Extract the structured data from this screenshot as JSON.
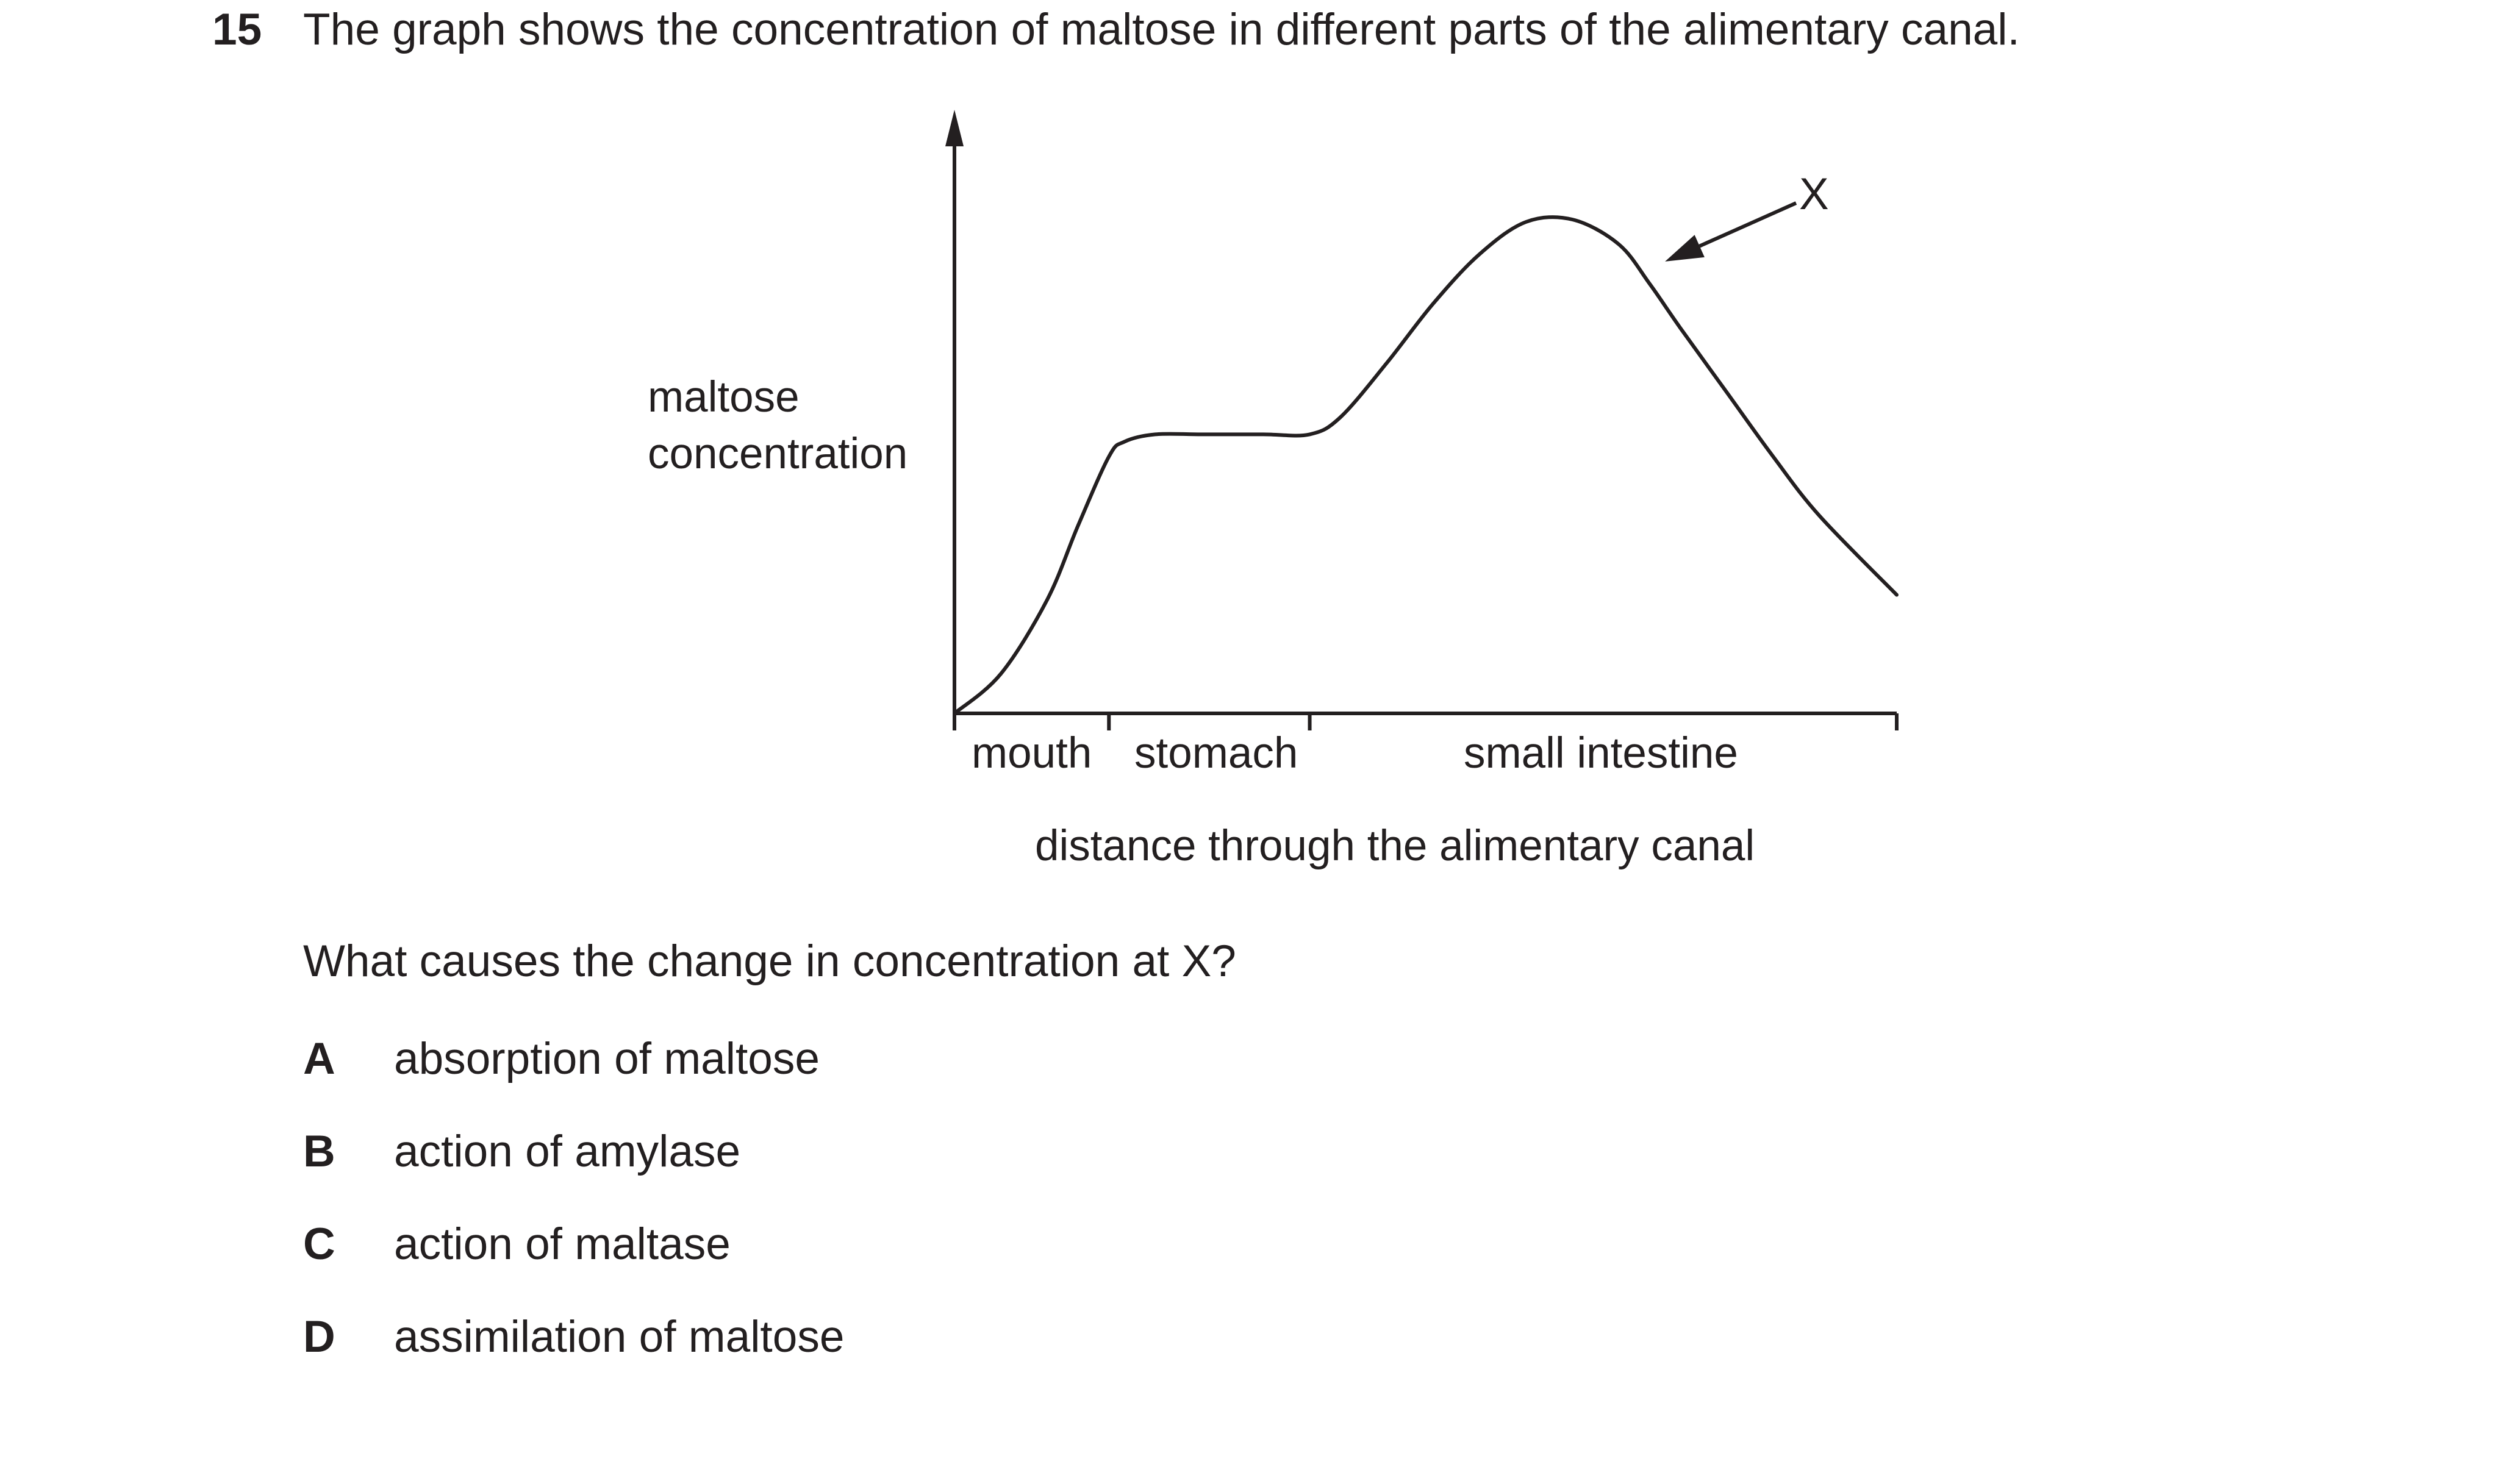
{
  "question": {
    "number": "15",
    "text": "The graph shows the concentration of maltose in different parts of the alimentary canal.",
    "prompt": "What causes the change in concentration at X?",
    "options": [
      {
        "letter": "A",
        "text": "absorption of maltose"
      },
      {
        "letter": "B",
        "text": "action of amylase"
      },
      {
        "letter": "C",
        "text": "action of maltase"
      },
      {
        "letter": "D",
        "text": "assimilation of maltose"
      }
    ]
  },
  "chart_data": {
    "type": "line",
    "title": "",
    "ylabel_lines": [
      "maltose",
      "concentration"
    ],
    "xlabel": "distance through the alimentary canal",
    "categories": [
      "mouth",
      "stomach",
      "small intestine"
    ],
    "section_boundaries": [
      0,
      1,
      2.3,
      6.1
    ],
    "xlim": [
      0,
      6.1
    ],
    "ylim": [
      0,
      1
    ],
    "grid": false,
    "x": [
      0,
      0.3,
      0.6,
      0.8,
      1.0,
      1.1,
      1.3,
      1.6,
      2.0,
      2.3,
      2.5,
      2.8,
      3.1,
      3.4,
      3.7,
      4.0,
      4.3,
      4.5,
      4.7,
      5.0,
      5.3,
      5.6,
      6.1
    ],
    "values": [
      0,
      0.08,
      0.23,
      0.38,
      0.52,
      0.55,
      0.565,
      0.565,
      0.565,
      0.565,
      0.6,
      0.71,
      0.83,
      0.93,
      0.995,
      1.0,
      0.95,
      0.87,
      0.78,
      0.65,
      0.52,
      0.4,
      0.24
    ],
    "annotation": {
      "label": "X",
      "x": 4.6,
      "y": 0.915
    }
  }
}
